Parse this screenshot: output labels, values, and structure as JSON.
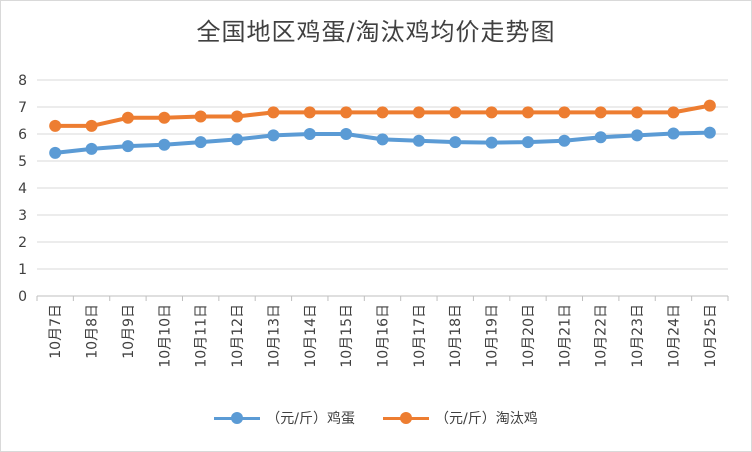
{
  "chart_data": {
    "type": "line",
    "title": "全国地区鸡蛋/淘汰鸡均价走势图",
    "categories": [
      "10月7日",
      "10月8日",
      "10月9日",
      "10月10日",
      "10月11日",
      "10月12日",
      "10月13日",
      "10月14日",
      "10月15日",
      "10月16日",
      "10月17日",
      "10月18日",
      "10月19日",
      "10月20日",
      "10月21日",
      "10月22日",
      "10月23日",
      "10月24日",
      "10月25日"
    ],
    "series": [
      {
        "name": "（元/斤）鸡蛋",
        "color": "#5b9bd5",
        "values": [
          5.3,
          5.45,
          5.55,
          5.6,
          5.7,
          5.8,
          5.95,
          6.0,
          6.0,
          5.8,
          5.75,
          5.7,
          5.68,
          5.7,
          5.75,
          5.88,
          5.95,
          6.02,
          6.05
        ]
      },
      {
        "name": "（元/斤）淘汰鸡",
        "color": "#ed7d31",
        "values": [
          6.3,
          6.3,
          6.6,
          6.6,
          6.65,
          6.65,
          6.8,
          6.8,
          6.8,
          6.8,
          6.8,
          6.8,
          6.8,
          6.8,
          6.8,
          6.8,
          6.8,
          6.8,
          7.05
        ]
      }
    ],
    "yticks": [
      "0",
      "1",
      "2",
      "3",
      "4",
      "5",
      "6",
      "7",
      "8"
    ],
    "ylim": [
      0,
      8
    ],
    "grid": true,
    "legend_position": "bottom"
  }
}
